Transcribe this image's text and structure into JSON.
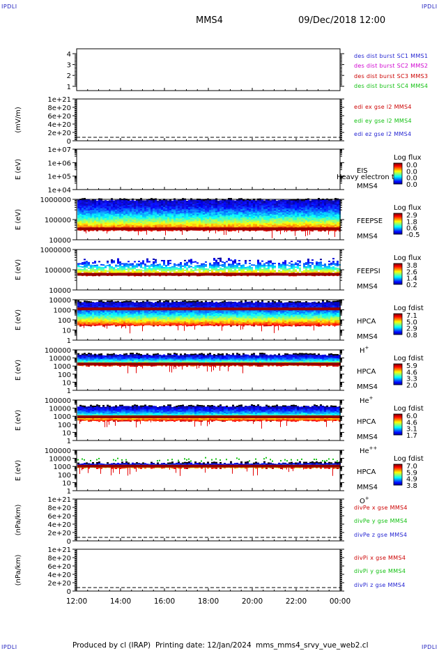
{
  "header": {
    "corner_label": "IPDLI",
    "spacecraft": "MMS4",
    "datetime": "09/Dec/2018 12:00"
  },
  "footer": {
    "produced_by": "Produced by cl (IRAP)",
    "printing_date": "Printing date: 12/Jan/2024",
    "script": "mms_mms4_srvy_vue_web2.cl"
  },
  "colors": {
    "blue": "#1f1fd0",
    "magenta": "#d000d0",
    "red": "#cc0000",
    "green": "#10c010",
    "dash": "#000000"
  },
  "chart_data": [
    {
      "id": "dist",
      "type": "line",
      "ylabel": "",
      "yticks": [
        "4",
        "3",
        "2",
        "1"
      ],
      "ylim": [
        0.6,
        4.4
      ],
      "legend": [
        {
          "text": "des dist burst SC1 MMS1",
          "color": "blue"
        },
        {
          "text": "des dist burst SC2 MMS2",
          "color": "magenta"
        },
        {
          "text": "des dist burst SC3 MMS3",
          "color": "red"
        },
        {
          "text": "des dist burst SC4 MMS4",
          "color": "green"
        }
      ]
    },
    {
      "id": "edi",
      "type": "line",
      "ylabel": "(mV/m)",
      "yticks": [
        "1e+21",
        "8e+20",
        "6e+20",
        "4e+20",
        "2e+20",
        "0"
      ],
      "ylim": [
        0,
        1e+21
      ],
      "zero_line": true,
      "legend": [
        {
          "text": "edi ex gse l2 MMS4",
          "color": "red"
        },
        {
          "text": "edi ey gse l2 MMS4",
          "color": "green"
        },
        {
          "text": "edi ez gse l2 MMS4",
          "color": "blue"
        }
      ]
    },
    {
      "id": "eis",
      "type": "heatmap",
      "ylabel": "E (eV)",
      "yticks": [
        "1e+07",
        "1e+06",
        "1e+05",
        "1e+04"
      ],
      "ylim": [
        10000,
        10000000
      ],
      "instrument": "EIS",
      "species": "Heavy electron to",
      "sc": "MMS4",
      "cbar_title": "Log flux",
      "cbar_ticks": [
        "0.0",
        "0.0",
        "0.0",
        "0.0"
      ],
      "spectrogram": null
    },
    {
      "id": "feepse",
      "type": "heatmap",
      "ylabel": "E (eV)",
      "yticks": [
        "1000000",
        "100000",
        "10000"
      ],
      "ylim": [
        10000,
        1000000
      ],
      "instrument": "FEEPSE",
      "sc": "MMS4",
      "cbar_title": "Log flux",
      "cbar_ticks": [
        "2.9",
        "1.8",
        "0.6",
        "-0.5"
      ],
      "spectrogram": {
        "e_top": 1000000,
        "e_bottom": 30000,
        "band_level": 32000,
        "sparse": false,
        "dither": false,
        "green_dots": false
      }
    },
    {
      "id": "feepsi",
      "type": "heatmap",
      "ylabel": "E (eV)",
      "yticks": [
        "1000000",
        "100000",
        "10000"
      ],
      "ylim": [
        10000,
        1000000
      ],
      "instrument": "FEEPSI",
      "sc": "MMS4",
      "cbar_title": "Log flux",
      "cbar_ticks": [
        "3.8",
        "2.6",
        "1.4",
        "0.2"
      ],
      "spectrogram": {
        "e_top": 400000,
        "e_bottom": 55000,
        "band_level": 55000,
        "sparse": true,
        "dither": true,
        "green_dots": false
      }
    },
    {
      "id": "hpca_h",
      "type": "heatmap",
      "ylabel": "E (eV)",
      "yticks": [
        "10000",
        "1000",
        "100",
        "10",
        "1"
      ],
      "ylim": [
        1,
        40000
      ],
      "instrument": "HPCA",
      "sc": "MMS4",
      "species_base": "H",
      "species_sup": "+",
      "cbar_title": "Log fdist",
      "cbar_ticks": [
        "7.1",
        "5.0",
        "2.9",
        "0.8"
      ],
      "spectrogram": {
        "e_top": 25000,
        "e_bottom": 50,
        "band_level": 3000,
        "sparse": false,
        "dither": false,
        "green_dots": false
      }
    },
    {
      "id": "hpca_he",
      "type": "heatmap",
      "ylabel": "E (eV)",
      "yticks": [
        "100000",
        "10000",
        "1000",
        "100",
        "10",
        "1"
      ],
      "ylim": [
        1,
        100000
      ],
      "instrument": "HPCA",
      "sc": "MMS4",
      "species_base": "He",
      "species_sup": "+",
      "cbar_title": "Log fdist",
      "cbar_ticks": [
        "5.9",
        "4.6",
        "3.3",
        "2.0"
      ],
      "spectrogram": {
        "e_top": 30000,
        "e_bottom": 1200,
        "band_level": 1500,
        "sparse": false,
        "dither": false,
        "green_dots": false
      }
    },
    {
      "id": "hpca_hepp",
      "type": "heatmap",
      "ylabel": "E (eV)",
      "yticks": [
        "100000",
        "10000",
        "1000",
        "100",
        "10",
        "1"
      ],
      "ylim": [
        1,
        100000
      ],
      "instrument": "HPCA",
      "sc": "MMS4",
      "species_base": "He",
      "species_sup": "++",
      "cbar_title": "Log fdist",
      "cbar_ticks": [
        "6.0",
        "4.6",
        "3.1",
        "1.7"
      ],
      "spectrogram": {
        "e_top": 20000,
        "e_bottom": 300,
        "band_level": 700,
        "sparse": false,
        "dither": false,
        "green_dots": false
      }
    },
    {
      "id": "hpca_o",
      "type": "heatmap",
      "ylabel": "E (eV)",
      "yticks": [
        "100000",
        "10000",
        "1000",
        "100",
        "10",
        "1"
      ],
      "ylim": [
        1,
        100000
      ],
      "instrument": "HPCA",
      "sc": "MMS4",
      "species_base": "O",
      "species_sup": "+",
      "cbar_title": "Log fdist",
      "cbar_ticks": [
        "7.0",
        "5.9",
        "4.9",
        "3.8"
      ],
      "spectrogram": {
        "e_top": 3000,
        "e_bottom": 700,
        "band_level": 900,
        "sparse": false,
        "dither": false,
        "green_dots": true
      }
    },
    {
      "id": "divpe",
      "type": "line",
      "ylabel": "(nPa/km)",
      "yticks": [
        "1e+21",
        "8e+20",
        "6e+20",
        "4e+20",
        "2e+20",
        "0"
      ],
      "ylim": [
        0,
        1e+21
      ],
      "zero_line": true,
      "legend": [
        {
          "text": "divPe x gse MMS4",
          "color": "red"
        },
        {
          "text": "divPe y gse MMS4",
          "color": "green"
        },
        {
          "text": "divPe z gse MMS4",
          "color": "blue"
        }
      ]
    },
    {
      "id": "divpi",
      "type": "line",
      "ylabel": "(nPa/km)",
      "yticks": [
        "1e+21",
        "8e+20",
        "6e+20",
        "4e+20",
        "2e+20",
        "0"
      ],
      "ylim": [
        0,
        1e+21
      ],
      "zero_line": true,
      "legend": [
        {
          "text": "divPi x gse MMS4",
          "color": "red"
        },
        {
          "text": "divPi y gse MMS4",
          "color": "green"
        },
        {
          "text": "divPi z gse MMS4",
          "color": "blue"
        }
      ]
    }
  ],
  "x_axis": {
    "ticks": [
      "12:00",
      "14:00",
      "16:00",
      "18:00",
      "20:00",
      "22:00",
      "00:00"
    ],
    "xlim_hours": [
      12,
      24
    ]
  }
}
